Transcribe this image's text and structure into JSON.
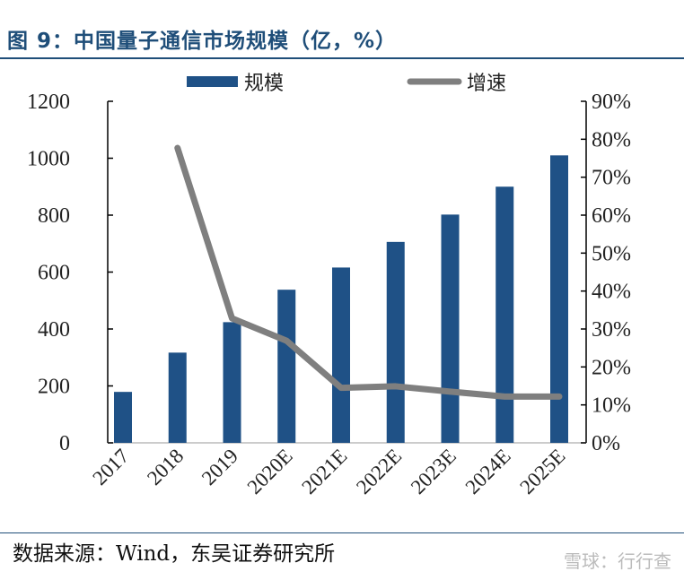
{
  "title": "图 9：中国量子通信市场规模（亿，%）",
  "source": "数据来源：Wind，东吴证券研究所",
  "watermark": "雪球：行行查",
  "colors": {
    "bar": "#1f5186",
    "line": "#7f7f7f",
    "title": "#1f4e79"
  },
  "chart_data": {
    "type": "bar+line",
    "categories": [
      "2017",
      "2018",
      "2019",
      "2020E",
      "2021E",
      "2022E",
      "2023E",
      "2024E",
      "2025E"
    ],
    "series": [
      {
        "name": "规模",
        "type": "bar",
        "axis": "left",
        "values": [
          179,
          317,
          424,
          538,
          616,
          706,
          802,
          900,
          1010
        ]
      },
      {
        "name": "增速",
        "type": "line",
        "axis": "right",
        "values": [
          null,
          77.7,
          32.8,
          26.9,
          14.5,
          14.9,
          13.5,
          12.2,
          12.2
        ]
      }
    ],
    "left_axis": {
      "ylim": [
        0,
        1200
      ],
      "ticks": [
        "0",
        "200",
        "400",
        "600",
        "800",
        "1000",
        "1200"
      ]
    },
    "right_axis": {
      "ylim": [
        0,
        90
      ],
      "ticks": [
        "0%",
        "10%",
        "20%",
        "30%",
        "40%",
        "50%",
        "60%",
        "70%",
        "80%",
        "90%"
      ]
    },
    "legend": "top",
    "grid": false
  }
}
